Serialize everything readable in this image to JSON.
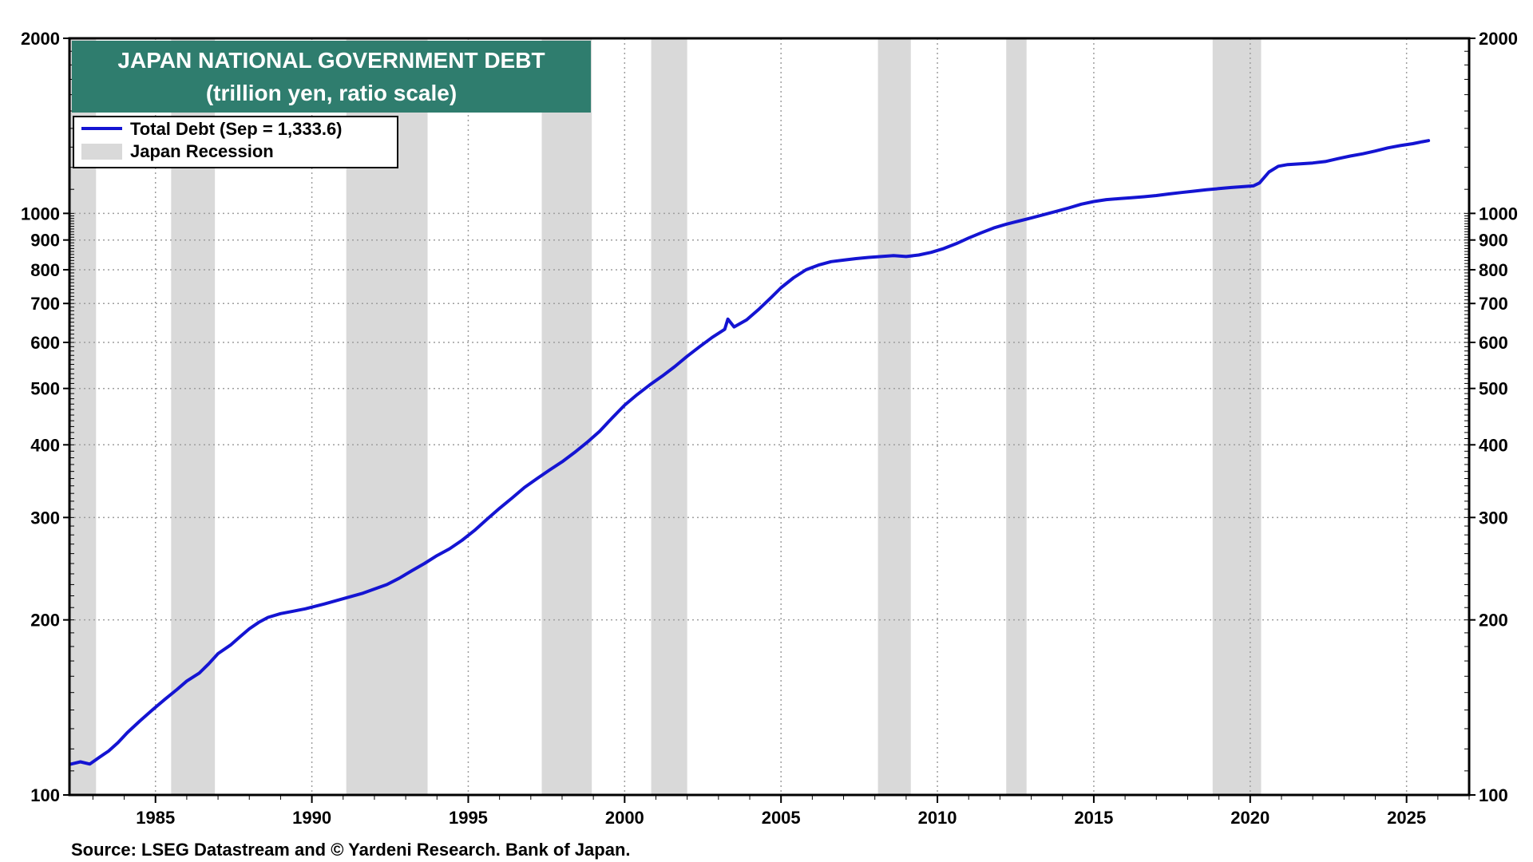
{
  "chart_data": {
    "type": "line",
    "title": "JAPAN NATIONAL GOVERNMENT DEBT",
    "subtitle": "(trillion yen, ratio scale)",
    "yscale": "log",
    "ylim": [
      100,
      2000
    ],
    "xlim": [
      1982.25,
      2027.0
    ],
    "y_ticks": [
      100,
      200,
      300,
      400,
      500,
      600,
      700,
      800,
      900,
      1000,
      2000
    ],
    "x_ticks": [
      1985,
      1990,
      1995,
      2000,
      2005,
      2010,
      2015,
      2020,
      2025
    ],
    "grid": true,
    "legend_position": "top-left",
    "series": [
      {
        "name": "Total Debt (Sep = 1,333.6)",
        "color": "#1414d2",
        "points": [
          [
            1982.3,
            113
          ],
          [
            1982.6,
            114
          ],
          [
            1982.9,
            113
          ],
          [
            1983.2,
            116
          ],
          [
            1983.5,
            119
          ],
          [
            1983.8,
            123
          ],
          [
            1984.1,
            128
          ],
          [
            1984.5,
            134
          ],
          [
            1984.9,
            140
          ],
          [
            1985.3,
            146
          ],
          [
            1985.7,
            152
          ],
          [
            1986.0,
            157
          ],
          [
            1986.4,
            162
          ],
          [
            1986.7,
            168
          ],
          [
            1987.0,
            175
          ],
          [
            1987.4,
            181
          ],
          [
            1987.7,
            187
          ],
          [
            1988.0,
            193
          ],
          [
            1988.3,
            198
          ],
          [
            1988.6,
            202
          ],
          [
            1989.0,
            205
          ],
          [
            1989.4,
            207
          ],
          [
            1989.8,
            209
          ],
          [
            1990.1,
            211
          ],
          [
            1990.4,
            213
          ],
          [
            1990.8,
            216
          ],
          [
            1991.2,
            219
          ],
          [
            1991.6,
            222
          ],
          [
            1992.0,
            226
          ],
          [
            1992.4,
            230
          ],
          [
            1992.8,
            236
          ],
          [
            1993.2,
            243
          ],
          [
            1993.6,
            250
          ],
          [
            1994.0,
            258
          ],
          [
            1994.4,
            265
          ],
          [
            1994.8,
            274
          ],
          [
            1995.2,
            285
          ],
          [
            1995.6,
            298
          ],
          [
            1996.0,
            311
          ],
          [
            1996.4,
            324
          ],
          [
            1996.8,
            338
          ],
          [
            1997.2,
            350
          ],
          [
            1997.6,
            362
          ],
          [
            1998.0,
            374
          ],
          [
            1998.4,
            388
          ],
          [
            1998.8,
            404
          ],
          [
            1999.2,
            422
          ],
          [
            1999.6,
            445
          ],
          [
            2000.0,
            468
          ],
          [
            2000.4,
            488
          ],
          [
            2000.8,
            507
          ],
          [
            2001.2,
            525
          ],
          [
            2001.6,
            545
          ],
          [
            2002.0,
            568
          ],
          [
            2002.4,
            590
          ],
          [
            2002.8,
            612
          ],
          [
            2003.2,
            632
          ],
          [
            2003.3,
            658
          ],
          [
            2003.5,
            638
          ],
          [
            2003.9,
            656
          ],
          [
            2004.3,
            685
          ],
          [
            2004.7,
            718
          ],
          [
            2005.0,
            745
          ],
          [
            2005.4,
            775
          ],
          [
            2005.8,
            800
          ],
          [
            2006.2,
            815
          ],
          [
            2006.6,
            826
          ],
          [
            2007.0,
            831
          ],
          [
            2007.4,
            836
          ],
          [
            2007.8,
            840
          ],
          [
            2008.2,
            843
          ],
          [
            2008.6,
            846
          ],
          [
            2009.0,
            843
          ],
          [
            2009.4,
            848
          ],
          [
            2009.8,
            857
          ],
          [
            2010.2,
            870
          ],
          [
            2010.6,
            887
          ],
          [
            2011.0,
            907
          ],
          [
            2011.4,
            926
          ],
          [
            2011.8,
            944
          ],
          [
            2012.2,
            958
          ],
          [
            2012.6,
            970
          ],
          [
            2013.0,
            982
          ],
          [
            2013.4,
            995
          ],
          [
            2013.8,
            1008
          ],
          [
            2014.2,
            1022
          ],
          [
            2014.6,
            1037
          ],
          [
            2015.0,
            1048
          ],
          [
            2015.4,
            1056
          ],
          [
            2015.8,
            1060
          ],
          [
            2016.2,
            1064
          ],
          [
            2016.6,
            1068
          ],
          [
            2017.0,
            1073
          ],
          [
            2017.4,
            1080
          ],
          [
            2017.8,
            1086
          ],
          [
            2018.2,
            1092
          ],
          [
            2018.6,
            1098
          ],
          [
            2019.0,
            1103
          ],
          [
            2019.4,
            1108
          ],
          [
            2019.8,
            1112
          ],
          [
            2020.1,
            1115
          ],
          [
            2020.3,
            1128
          ],
          [
            2020.6,
            1178
          ],
          [
            2020.9,
            1205
          ],
          [
            2021.2,
            1213
          ],
          [
            2021.6,
            1217
          ],
          [
            2022.0,
            1221
          ],
          [
            2022.4,
            1228
          ],
          [
            2022.8,
            1242
          ],
          [
            2023.2,
            1255
          ],
          [
            2023.6,
            1266
          ],
          [
            2024.0,
            1280
          ],
          [
            2024.4,
            1296
          ],
          [
            2024.8,
            1308
          ],
          [
            2025.2,
            1318
          ],
          [
            2025.5,
            1328
          ],
          [
            2025.7,
            1333.6
          ]
        ]
      }
    ],
    "recessions": [
      {
        "name": "Japan Recession",
        "color": "#d9d9d9"
      },
      [
        1982.25,
        1983.1
      ],
      [
        1985.5,
        1986.9
      ],
      [
        1991.1,
        1993.7
      ],
      [
        1997.35,
        1998.95
      ],
      [
        2000.85,
        2002.0
      ],
      [
        2008.1,
        2009.15
      ],
      [
        2012.2,
        2012.85
      ],
      [
        2018.8,
        2020.35
      ]
    ],
    "legend": [
      {
        "label": "Total Debt (Sep = 1,333.6)",
        "kind": "line",
        "color": "#1414d2"
      },
      {
        "label": "Japan Recession",
        "kind": "swatch",
        "color": "#d9d9d9"
      }
    ],
    "source": "Source: LSEG Datastream and © Yardeni Research. Bank of Japan."
  },
  "colors": {
    "title_bg": "#2f7d6e",
    "title_fg": "#ffffff",
    "grid": "#9e9e9e",
    "frame": "#000000"
  }
}
